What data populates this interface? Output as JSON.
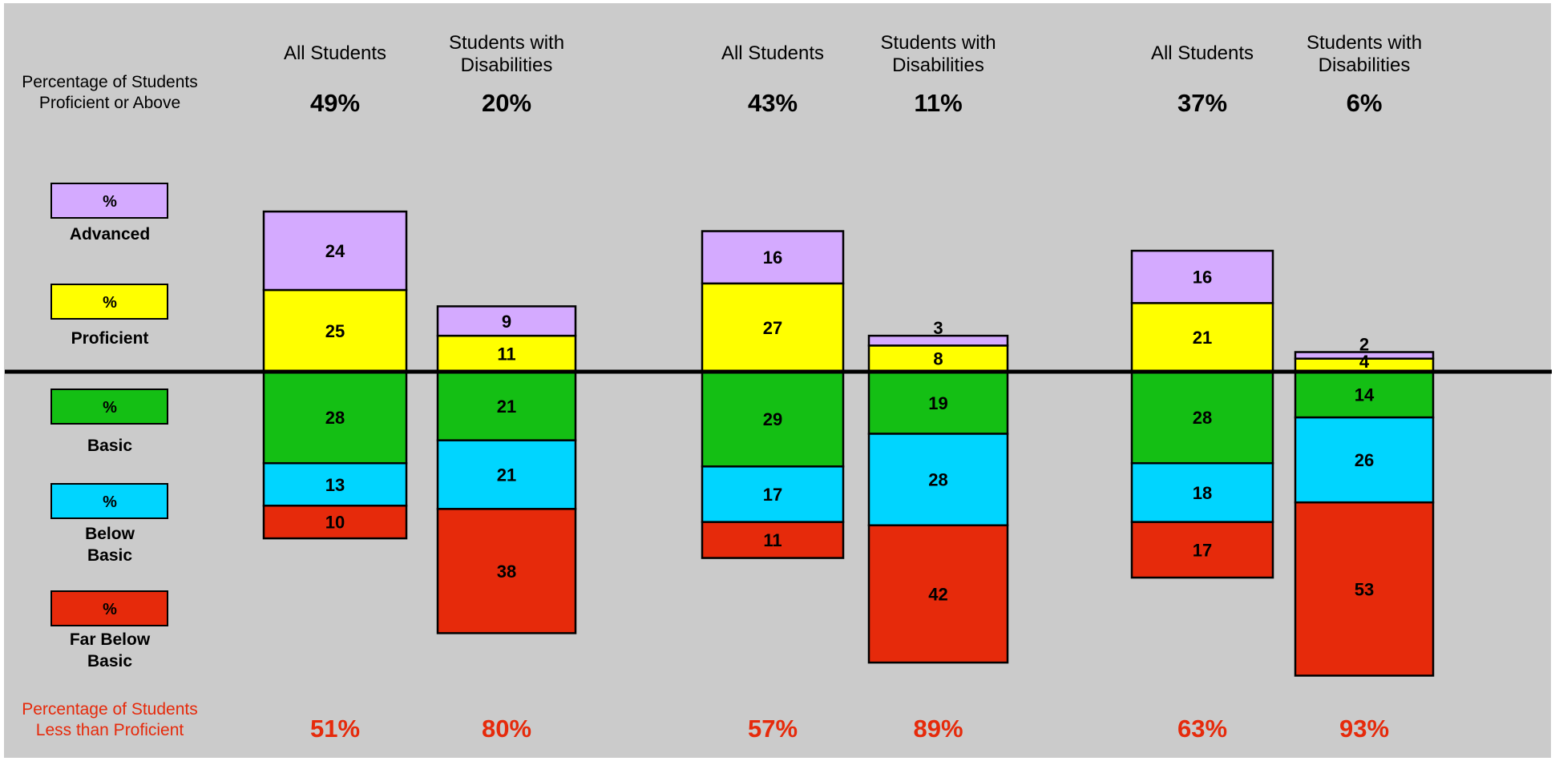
{
  "colors": {
    "background": "#cbcbcb",
    "advanced": "#d4aaff",
    "proficient": "#ffff00",
    "basic": "#14bf14",
    "below_basic": "#00d5ff",
    "far_below_basic": "#e62a0b",
    "less_than_proficient_text": "#e62a0b"
  },
  "row_labels": {
    "proficient_above": [
      "Percentage of Students",
      "Proficient or Above"
    ],
    "less_than_proficient": [
      "Percentage of Students",
      "Less than Proficient"
    ]
  },
  "legend": [
    {
      "key": "advanced",
      "symbol": "%",
      "label_lines": [
        "Advanced"
      ]
    },
    {
      "key": "proficient",
      "symbol": "%",
      "label_lines": [
        "Proficient"
      ]
    },
    {
      "key": "basic",
      "symbol": "%",
      "label_lines": [
        "Basic"
      ]
    },
    {
      "key": "below_basic",
      "symbol": "%",
      "label_lines": [
        "Below",
        "Basic"
      ]
    },
    {
      "key": "far_below_basic",
      "symbol": "%",
      "label_lines": [
        "Far Below",
        "Basic"
      ]
    }
  ],
  "chart_data": {
    "type": "bar",
    "subtype": "diverging stacked bar",
    "baseline": "between Proficient and Basic",
    "legend_position": "left",
    "grid": false,
    "levels": [
      "Advanced",
      "Proficient",
      "Basic",
      "Below Basic",
      "Far Below Basic"
    ],
    "groups": [
      {
        "bars": [
          {
            "label_lines": [
              "All Students"
            ],
            "proficient_or_above": "49%",
            "less_than_proficient": "51%",
            "values": {
              "advanced": 24,
              "proficient": 25,
              "basic": 28,
              "below_basic": 13,
              "far_below_basic": 10
            }
          },
          {
            "label_lines": [
              "Students with",
              "Disabilities"
            ],
            "proficient_or_above": "20%",
            "less_than_proficient": "80%",
            "values": {
              "advanced": 9,
              "proficient": 11,
              "basic": 21,
              "below_basic": 21,
              "far_below_basic": 38
            }
          }
        ]
      },
      {
        "bars": [
          {
            "label_lines": [
              "All Students"
            ],
            "proficient_or_above": "43%",
            "less_than_proficient": "57%",
            "values": {
              "advanced": 16,
              "proficient": 27,
              "basic": 29,
              "below_basic": 17,
              "far_below_basic": 11
            }
          },
          {
            "label_lines": [
              "Students with",
              "Disabilities"
            ],
            "proficient_or_above": "11%",
            "less_than_proficient": "89%",
            "values": {
              "advanced": 3,
              "proficient": 8,
              "basic": 19,
              "below_basic": 28,
              "far_below_basic": 42
            }
          }
        ]
      },
      {
        "bars": [
          {
            "label_lines": [
              "All Students"
            ],
            "proficient_or_above": "37%",
            "less_than_proficient": "63%",
            "values": {
              "advanced": 16,
              "proficient": 21,
              "basic": 28,
              "below_basic": 18,
              "far_below_basic": 17
            }
          },
          {
            "label_lines": [
              "Students with",
              "Disabilities"
            ],
            "proficient_or_above": "6%",
            "less_than_proficient": "93%",
            "values": {
              "advanced": 2,
              "proficient": 4,
              "basic": 14,
              "below_basic": 26,
              "far_below_basic": 53
            }
          }
        ]
      }
    ]
  }
}
